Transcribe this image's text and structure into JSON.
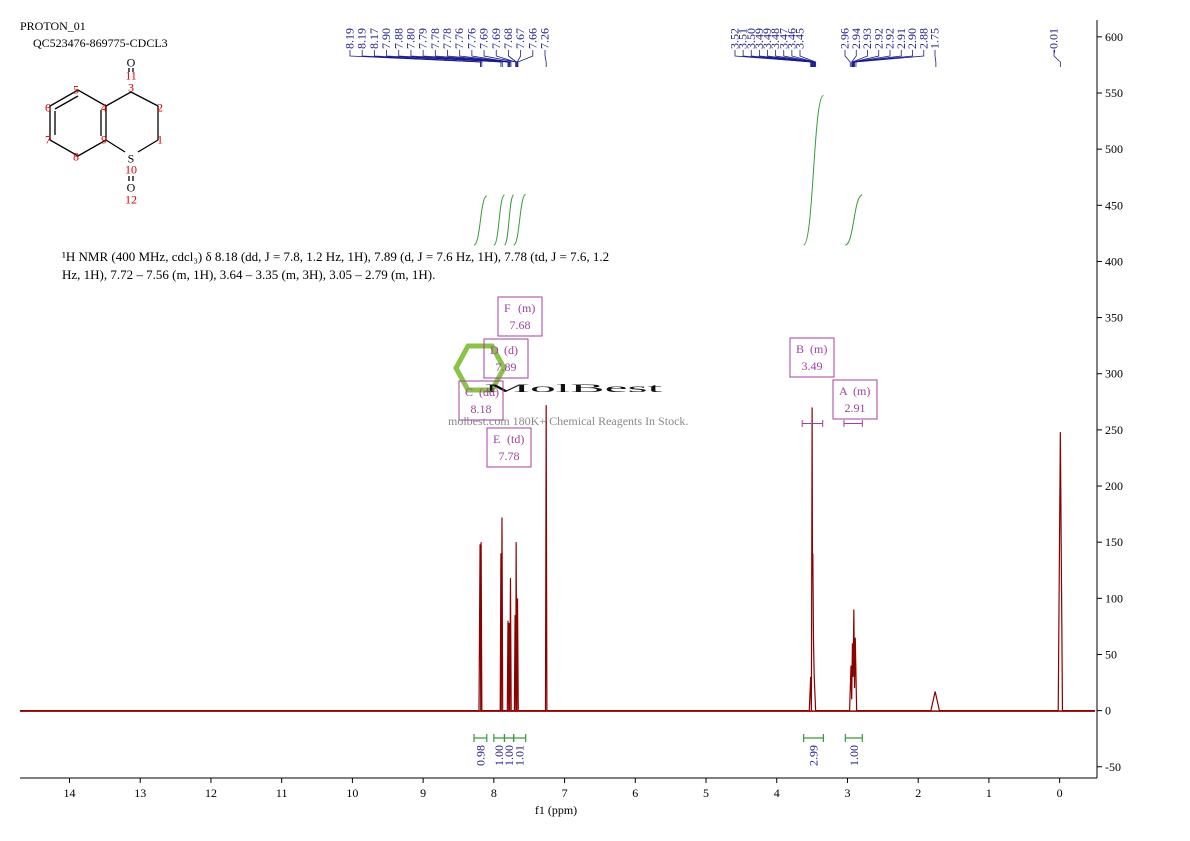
{
  "chart_data": {
    "type": "line",
    "title": "PROTON_01",
    "subtitle": "QC523476-869775-CDCL3",
    "description": "¹H NMR (400 MHz, cdcl₃) δ 8.18 (dd, J = 7.8, 1.2 Hz, 1H), 7.89 (d, J = 7.6 Hz, 1H), 7.78 (td, J = 7.6, 1.2 Hz, 1H), 7.72 – 7.56 (m, 1H), 3.64 – 3.35 (m, 3H), 3.05 – 2.79 (m, 1H).",
    "x_label": "f1 (ppm)",
    "color": "#8b0000",
    "x": [
      14.7,
      8.21,
      8.195,
      8.185,
      8.18,
      8.17,
      7.91,
      7.9,
      7.895,
      7.885,
      7.875,
      7.81,
      7.8,
      7.79,
      7.785,
      7.775,
      7.765,
      7.755,
      7.71,
      7.7,
      7.69,
      7.685,
      7.675,
      7.665,
      7.655,
      7.27,
      7.26,
      7.25,
      3.54,
      3.52,
      3.51,
      3.5,
      3.495,
      3.49,
      3.48,
      3.47,
      3.45,
      2.97,
      2.95,
      2.94,
      2.93,
      2.92,
      2.91,
      2.9,
      2.89,
      2.87,
      1.82,
      1.76,
      1.7,
      0.02,
      -0.01,
      -0.04,
      -0.5
    ],
    "values": [
      0,
      0,
      148,
      0,
      150,
      0,
      0,
      140,
      0,
      172,
      0,
      0,
      80,
      0,
      78,
      0,
      118,
      0,
      0,
      85,
      0,
      150,
      0,
      100,
      0,
      0,
      272,
      0,
      0,
      30,
      0,
      270,
      120,
      140,
      60,
      30,
      0,
      0,
      40,
      10,
      60,
      30,
      90,
      20,
      65,
      0,
      0,
      17,
      0,
      0,
      248,
      0,
      0
    ],
    "xlim": [
      14.7,
      -0.5
    ],
    "xticks": [
      14,
      13,
      12,
      11,
      10,
      9,
      8,
      7,
      6,
      5,
      4,
      3,
      2,
      1,
      0
    ],
    "ylim": [
      -60,
      615
    ],
    "yticks": [
      -50,
      0,
      50,
      100,
      150,
      200,
      250,
      300,
      350,
      400,
      450,
      500,
      550,
      600
    ],
    "peak_labels": [
      8.19,
      8.19,
      8.17,
      {
        "value": 7.9,
        "label": "7.90"
      },
      7.88,
      {
        "value": 7.8,
        "label": "7.80"
      },
      7.79,
      7.78,
      7.78,
      7.76,
      7.76,
      7.69,
      7.69,
      7.68,
      7.67,
      7.66,
      7.26,
      3.52,
      3.51,
      {
        "value": 3.5,
        "label": "3.50"
      },
      3.49,
      3.49,
      3.48,
      3.47,
      3.46,
      3.45,
      2.96,
      2.94,
      2.93,
      2.92,
      2.92,
      2.91,
      {
        "value": 2.9,
        "label": "2.90"
      },
      2.88,
      1.75,
      -0.01
    ],
    "integrals": [
      {
        "from": 8.28,
        "to": 8.1,
        "value": 0.98
      },
      {
        "from": 8.0,
        "to": 7.85,
        "value": 1,
        "label": "1.00"
      },
      {
        "from": 7.85,
        "to": 7.72,
        "value": 1,
        "label": "1.00"
      },
      {
        "from": 7.72,
        "to": 7.55,
        "value": 1.01
      },
      {
        "from": 3.62,
        "to": 3.34,
        "value": 2.99
      },
      {
        "from": 3.03,
        "to": 2.79,
        "value": 1,
        "label": "1.00"
      }
    ],
    "multiplets": [
      {
        "name": "F",
        "kind": "(m)",
        "shift": 7.68
      },
      {
        "name": "D",
        "kind": "(d)",
        "shift": 7.89
      },
      {
        "name": "C",
        "kind": "(dd)",
        "shift": 8.18
      },
      {
        "name": "E",
        "kind": "(td)",
        "shift": 7.78
      },
      {
        "name": "B",
        "kind": "(m)",
        "shift": 3.49,
        "range": [
          3.64,
          3.35
        ]
      },
      {
        "name": "A",
        "kind": "(m)",
        "shift": 2.91,
        "range": [
          3.05,
          2.79
        ]
      }
    ],
    "structure_labels": [
      "O",
      "11",
      "3",
      "2",
      "1",
      "4",
      "5",
      "6",
      "7",
      "8",
      "9",
      "S",
      "10",
      "O",
      "12"
    ],
    "watermark": {
      "brand": "MolBest",
      "tagline": "molbest.com 180K+ Chemical Reagents In Stock."
    }
  }
}
